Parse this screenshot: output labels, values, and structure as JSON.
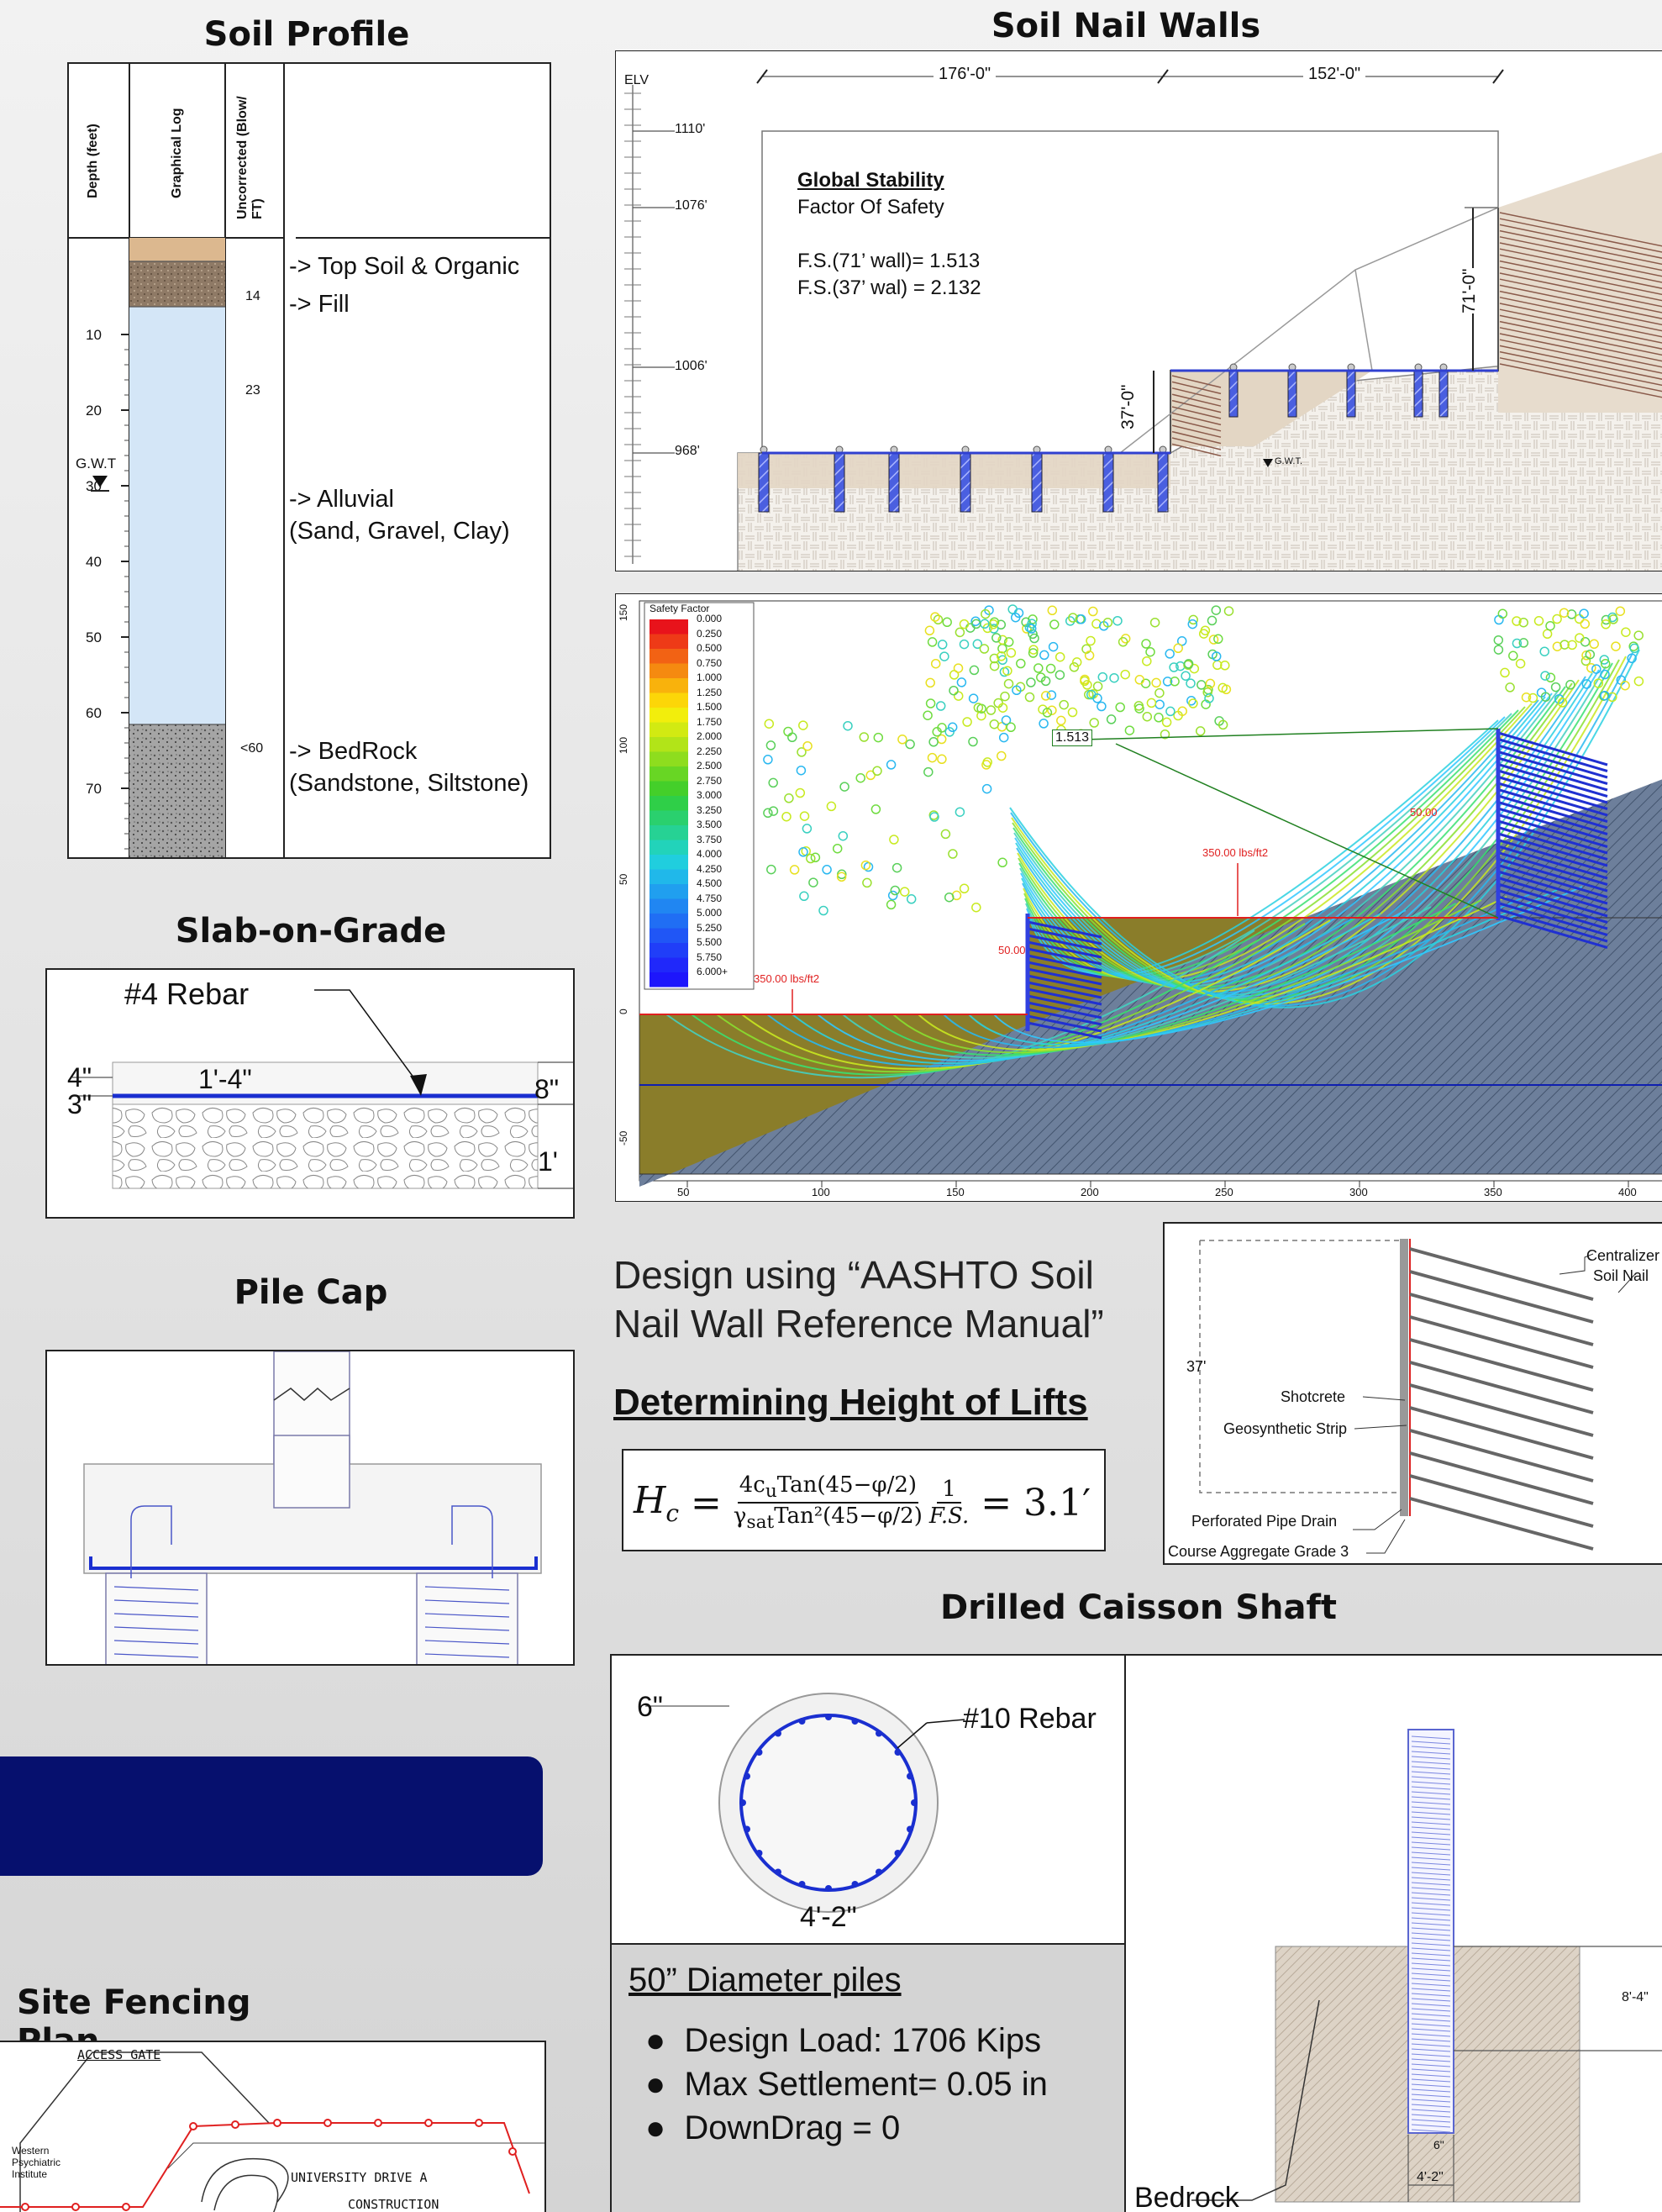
{
  "titles": {
    "soil_profile": "Soil Profile",
    "soil_nail_walls": "Soil Nail Walls",
    "slab": "Slab-on-Grade",
    "pile_cap": "Pile Cap",
    "caisson": "Drilled Caisson Shaft",
    "fencing": "Site Fencing Plan"
  },
  "soil_profile": {
    "headers": [
      "Depth (feet)",
      "Graphical Log",
      "Uncorrected (Blow/ FT)"
    ],
    "depth_ticks": [
      "10",
      "20",
      "30",
      "40",
      "50",
      "60",
      "70"
    ],
    "gwt": "G.W.T",
    "blows": [
      "14",
      "23",
      "<60"
    ],
    "layers": [
      {
        "label": "-> Top Soil & Organic",
        "color": "#dcb88f"
      },
      {
        "label": "-> Fill",
        "color": "#8f7a66"
      },
      {
        "label": "-> Alluvial",
        "label2": "(Sand, Gravel, Clay)",
        "color": "#d4e6f7"
      },
      {
        "label": "-> BedRock",
        "label2": "(Sandstone, Siltstone)",
        "color": "#a8a8a8"
      }
    ]
  },
  "nail_wall": {
    "elv": "ELV",
    "dim_left": "176'-0\"",
    "dim_right": "152'-0\"",
    "elevations": [
      "1110'",
      "1076'",
      "1006'",
      "968'"
    ],
    "stability_title": "Global Stability",
    "stability_sub": "Factor Of Safety",
    "fs1": "F.S.(71’ wall)= 1.513",
    "fs2": "F.S.(37’ wal) = 2.132",
    "h71": "71'-0\"",
    "h37": "37'-0\"",
    "gwt": "G.W.T."
  },
  "safety_chart": {
    "legend_title": "Safety Factor",
    "legend_values": [
      "0.000",
      "0.250",
      "0.500",
      "0.750",
      "1.000",
      "1.250",
      "1.500",
      "1.750",
      "2.000",
      "2.250",
      "2.500",
      "2.750",
      "3.000",
      "3.250",
      "3.500",
      "3.750",
      "4.000",
      "4.250",
      "4.500",
      "4.750",
      "5.000",
      "5.250",
      "5.500",
      "5.750",
      "6.000+"
    ],
    "legend_colors": [
      "#e8131b",
      "#ee3a17",
      "#f26214",
      "#f58a10",
      "#f9b20c",
      "#fcd608",
      "#f2ee0c",
      "#d2ea12",
      "#b2e418",
      "#8edd1e",
      "#68d624",
      "#44cf2a",
      "#2fcf48",
      "#2ad06e",
      "#26d294",
      "#22d3ba",
      "#20cede",
      "#20b8ea",
      "#209fef",
      "#2086f2",
      "#206ef4",
      "#2056f6",
      "#203ef8",
      "#2028fa",
      "#1d16fc"
    ],
    "min_fs": "1.513",
    "load1": "350.00 lbs/ft2",
    "load2": "350.00 lbs/ft2",
    "load3": "50.00",
    "load4": "50.00",
    "x_ticks": [
      "50",
      "100",
      "150",
      "200",
      "250",
      "300",
      "350",
      "400"
    ],
    "y_ticks": [
      "150",
      "100",
      "50",
      "0",
      "-50"
    ]
  },
  "slab": {
    "rebar": "#4 Rebar",
    "d4": "4\"",
    "d3": "3\"",
    "spacing": "1'-4\"",
    "d8": "8\"",
    "d1": "1'"
  },
  "design": {
    "line1": "Design using “AASHTO Soil",
    "line2": "Nail Wall Reference Manual”",
    "lifts": "Determining Height of Lifts",
    "result": "= 3.1′"
  },
  "nail_detail": {
    "centralizer": "Centralizer",
    "soil_nail": "Soil Nail",
    "h37": "37'",
    "shotcrete": "Shotcrete",
    "geo": "Geosynthetic Strip",
    "pipe": "Perforated Pipe Drain",
    "aggregate": "Course Aggregate Grade 3"
  },
  "caisson": {
    "cover": "6\"",
    "rebar": "#10 Rebar",
    "diameter": "4'-2\"",
    "piles": "50” Diameter piles",
    "bullets": [
      "Design Load: 1706 Kips",
      "Max Settlement= 0.05 in",
      "DownDrag = 0"
    ],
    "bedrock": "Bedrock",
    "embed": "8'-4\"",
    "bottom_cover": "6\"",
    "bottom_dia": "4'-2\""
  },
  "fencing": {
    "gate": "ACCESS GATE",
    "wpi1": "Western",
    "wpi2": "Psychiatric",
    "wpi3": "Institute",
    "univ": "UNIVERSITY DRIVE A",
    "constr": "CONSTRUCTION"
  }
}
